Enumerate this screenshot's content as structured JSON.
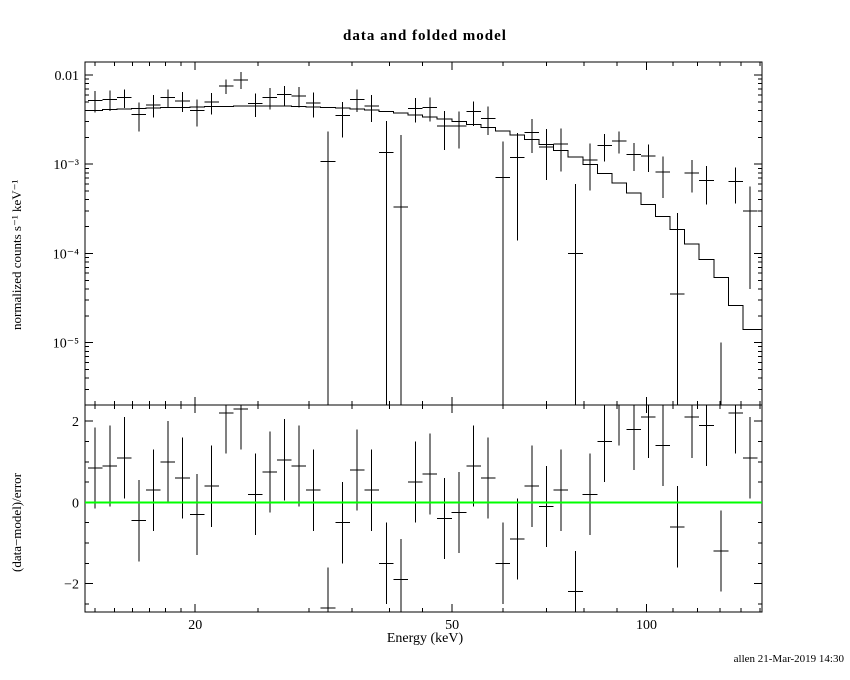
{
  "footer": "allen 21-Mar-2019 14:30",
  "colors": {
    "background": "#ffffff",
    "data": "#000000",
    "model": "#000000",
    "zero_line": "#00ff00",
    "frame": "#000000"
  },
  "chart_data": [
    {
      "panel": "spectrum",
      "type": "scatter",
      "title": "data and folded model",
      "ylabel": "normalized counts s⁻¹ keV⁻¹",
      "xlabel": "",
      "xscale": "log",
      "yscale": "log",
      "xlim": [
        13.5,
        151
      ],
      "ylim": [
        2e-06,
        0.014
      ],
      "legend": "none",
      "grid": false,
      "x": [
        14,
        14.75,
        15.53,
        16.36,
        17.23,
        18.15,
        19.12,
        20.14,
        21.21,
        22.34,
        23.53,
        24.78,
        26.1,
        27.49,
        28.96,
        30.5,
        32.13,
        33.84,
        35.64,
        37.54,
        39.54,
        41.65,
        43.87,
        46.21,
        48.67,
        51.26,
        54,
        56.87,
        59.9,
        63.1,
        66.46,
        70,
        73.73,
        77.66,
        81.8,
        86.16,
        90.75,
        95.58,
        100.68,
        106.04,
        111.69,
        117.64,
        123.91,
        130.51,
        137.47,
        144.79
      ],
      "xerr": [
        0.36,
        0.38,
        0.4,
        0.43,
        0.45,
        0.47,
        0.5,
        0.52,
        0.55,
        0.58,
        0.61,
        0.64,
        0.68,
        0.71,
        0.75,
        0.79,
        0.84,
        0.88,
        0.93,
        0.98,
        1.03,
        1.08,
        1.14,
        1.2,
        1.27,
        1.33,
        1.4,
        1.48,
        1.56,
        1.64,
        1.73,
        1.82,
        1.92,
        2.02,
        2.13,
        2.24,
        2.36,
        2.49,
        2.62,
        2.76,
        2.9,
        3.06,
        3.22,
        3.39,
        3.57,
        3.76
      ],
      "y": [
        0.00519,
        0.00532,
        0.00558,
        0.00362,
        0.00464,
        0.0056,
        0.00513,
        0.004,
        0.00496,
        0.00753,
        0.00885,
        0.00478,
        0.00563,
        0.00606,
        0.0058,
        0.00485,
        0.00108,
        0.0035,
        0.00535,
        0.00448,
        0.00135,
        0.00033,
        0.00423,
        0.00431,
        0.0027,
        0.0027,
        0.00388,
        0.00327,
        0.00071,
        0.00119,
        0.00228,
        0.00157,
        0.00168,
        0.0001,
        0.00111,
        0.00162,
        0.00182,
        0.00129,
        0.00124,
        0.00082,
        3.5e-05,
        0.0008,
        0.000655,
        -0.00021,
        0.000642,
        0.0003
      ],
      "yerr": [
        0.0014,
        0.00135,
        0.0013,
        0.0013,
        0.0013,
        0.0013,
        0.0013,
        0.00135,
        0.00135,
        0.0014,
        0.0019,
        0.0014,
        0.0015,
        0.0015,
        0.0015,
        0.0015,
        0.00125,
        0.0015,
        0.0015,
        0.0015,
        0.0017,
        0.0018,
        0.0013,
        0.0013,
        0.00125,
        0.0012,
        0.0012,
        0.00115,
        0.0011,
        0.00105,
        0.00095,
        0.0009,
        0.00085,
        0.0005,
        0.0006,
        0.00055,
        0.0005,
        0.00045,
        0.00042,
        0.0004,
        0.00025,
        0.00032,
        0.0003,
        0.00022,
        0.00028,
        0.00026
      ],
      "model": {
        "label": "folded model",
        "style": "step",
        "y": [
          0.004,
          0.0041,
          0.00415,
          0.0042,
          0.00425,
          0.0043,
          0.00435,
          0.0044,
          0.00442,
          0.00445,
          0.00448,
          0.0045,
          0.0045,
          0.00448,
          0.00445,
          0.0044,
          0.00433,
          0.00425,
          0.00415,
          0.00403,
          0.0039,
          0.00375,
          0.00358,
          0.0034,
          0.0032,
          0.003,
          0.0028,
          0.00258,
          0.00236,
          0.00213,
          0.0019,
          0.00166,
          0.00142,
          0.0012,
          0.00099,
          0.00079,
          0.00062,
          0.000475,
          0.000355,
          0.00026,
          0.000185,
          0.000128,
          8.5e-05,
          5.4e-05,
          2.6e-05,
          1.4e-05
        ]
      },
      "xticks": {
        "major": [
          20,
          50,
          100
        ],
        "minor": [
          14,
          15,
          16,
          17,
          18,
          19,
          25,
          30,
          35,
          40,
          45,
          60,
          70,
          80,
          90,
          110,
          120,
          130,
          140,
          150
        ],
        "labels": []
      },
      "yticks": {
        "major": [
          0.01,
          0.001,
          0.0001,
          1e-05
        ],
        "labels": [
          "0.01",
          "10⁻³",
          "10⁻⁴",
          "10⁻⁵"
        ]
      }
    },
    {
      "panel": "residuals",
      "type": "scatter",
      "title": "",
      "ylabel": "(data−model)/error",
      "xlabel": "Energy (keV)",
      "xscale": "log",
      "yscale": "linear",
      "xlim": [
        13.5,
        151
      ],
      "ylim": [
        -2.7,
        2.4
      ],
      "x_shared_with_panel": 0,
      "y": [
        0.85,
        0.9,
        1.1,
        -0.45,
        0.3,
        1,
        0.6,
        -0.3,
        0.4,
        2.2,
        2.3,
        0.2,
        0.75,
        1.05,
        0.9,
        0.3,
        -2.6,
        -0.5,
        0.8,
        0.3,
        -1.5,
        -1.9,
        0.5,
        0.7,
        -0.4,
        -0.25,
        0.9,
        0.6,
        -1.5,
        -0.9,
        0.4,
        -0.1,
        0.3,
        -2.2,
        0.2,
        1.5,
        2.4,
        1.8,
        2.1,
        1.4,
        -0.6,
        2.1,
        1.9,
        -1.2,
        2.2,
        1.1
      ],
      "yerr_const": 1,
      "zero_line": {
        "y": 0,
        "color": "#00ff00"
      },
      "xticks": {
        "major": [
          20,
          50,
          100
        ],
        "minor": [
          14,
          15,
          16,
          17,
          18,
          19,
          25,
          30,
          35,
          40,
          45,
          60,
          70,
          80,
          90,
          110,
          120,
          130,
          140,
          150
        ],
        "labels": [
          "20",
          "50",
          "100"
        ]
      },
      "yticks": {
        "major": [
          -2,
          0,
          2
        ],
        "labels": [
          "−2",
          "0",
          "2"
        ],
        "minor": [
          -2.5,
          -1.5,
          -1,
          -0.5,
          0.5,
          1,
          1.5
        ]
      }
    }
  ]
}
